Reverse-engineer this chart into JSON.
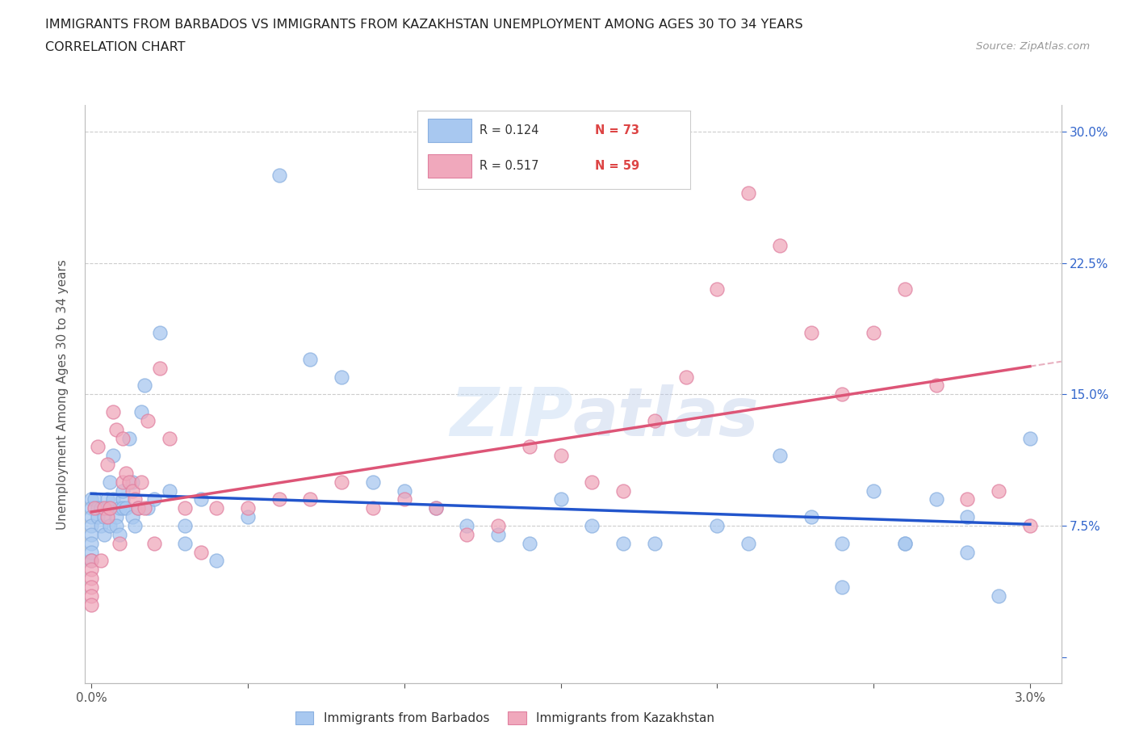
{
  "title_line1": "IMMIGRANTS FROM BARBADOS VS IMMIGRANTS FROM KAZAKHSTAN UNEMPLOYMENT AMONG AGES 30 TO 34 YEARS",
  "title_line2": "CORRELATION CHART",
  "source_text": "Source: ZipAtlas.com",
  "ylabel": "Unemployment Among Ages 30 to 34 years",
  "watermark": "ZIPatlas",
  "barbados_R": 0.124,
  "barbados_N": 73,
  "kazakhstan_R": 0.517,
  "kazakhstan_N": 59,
  "blue_color": "#a8c8f0",
  "pink_color": "#f0a8bc",
  "blue_line_color": "#2255cc",
  "pink_line_color": "#dd5577",
  "dashed_line_color": "#e8b0c0",
  "background_color": "#ffffff",
  "grid_color": "#cccccc",
  "title_color": "#222222",
  "legend_R_color": "#333333",
  "legend_N_color": "#dd4444",
  "xlim": [
    -0.0002,
    0.031
  ],
  "ylim": [
    -0.015,
    0.315
  ],
  "x_ticks": [
    0.0,
    0.005,
    0.01,
    0.015,
    0.02,
    0.025,
    0.03
  ],
  "x_tick_labels": [
    "0.0%",
    "",
    "",
    "",
    "",
    "",
    "3.0%"
  ],
  "y_ticks": [
    0.0,
    0.075,
    0.15,
    0.225,
    0.3
  ],
  "y_tick_labels_right": [
    "",
    "7.5%",
    "15.0%",
    "22.5%",
    "30.0%"
  ],
  "barbados_x": [
    0.0,
    0.0,
    0.0,
    0.0,
    0.0,
    0.0,
    0.0,
    0.0,
    0.0001,
    0.0002,
    0.0002,
    0.0003,
    0.0003,
    0.0004,
    0.0004,
    0.0005,
    0.0005,
    0.0006,
    0.0006,
    0.0007,
    0.0007,
    0.0008,
    0.0008,
    0.0009,
    0.0009,
    0.001,
    0.001,
    0.001,
    0.0011,
    0.0012,
    0.0013,
    0.0013,
    0.0014,
    0.0015,
    0.0016,
    0.0017,
    0.0018,
    0.002,
    0.0022,
    0.0025,
    0.003,
    0.003,
    0.0035,
    0.004,
    0.005,
    0.006,
    0.007,
    0.008,
    0.009,
    0.01,
    0.011,
    0.012,
    0.013,
    0.014,
    0.015,
    0.016,
    0.017,
    0.018,
    0.02,
    0.021,
    0.022,
    0.023,
    0.024,
    0.025,
    0.026,
    0.027,
    0.028,
    0.029,
    0.03,
    0.028,
    0.026,
    0.024
  ],
  "barbados_y": [
    0.09,
    0.085,
    0.08,
    0.075,
    0.07,
    0.065,
    0.06,
    0.055,
    0.09,
    0.085,
    0.08,
    0.085,
    0.075,
    0.08,
    0.07,
    0.09,
    0.085,
    0.1,
    0.075,
    0.115,
    0.09,
    0.08,
    0.075,
    0.085,
    0.07,
    0.09,
    0.095,
    0.085,
    0.085,
    0.125,
    0.1,
    0.08,
    0.075,
    0.085,
    0.14,
    0.155,
    0.085,
    0.09,
    0.185,
    0.095,
    0.075,
    0.065,
    0.09,
    0.055,
    0.08,
    0.275,
    0.17,
    0.16,
    0.1,
    0.095,
    0.085,
    0.075,
    0.07,
    0.065,
    0.09,
    0.075,
    0.065,
    0.065,
    0.075,
    0.065,
    0.115,
    0.08,
    0.065,
    0.095,
    0.065,
    0.09,
    0.06,
    0.035,
    0.125,
    0.08,
    0.065,
    0.04
  ],
  "kazakhstan_x": [
    0.0,
    0.0,
    0.0,
    0.0,
    0.0,
    0.0,
    0.0001,
    0.0002,
    0.0003,
    0.0004,
    0.0005,
    0.0005,
    0.0006,
    0.0007,
    0.0008,
    0.0009,
    0.001,
    0.001,
    0.0011,
    0.0012,
    0.0013,
    0.0014,
    0.0015,
    0.0016,
    0.0017,
    0.0018,
    0.002,
    0.0022,
    0.0025,
    0.003,
    0.0035,
    0.004,
    0.005,
    0.006,
    0.007,
    0.008,
    0.009,
    0.01,
    0.011,
    0.012,
    0.013,
    0.014,
    0.015,
    0.016,
    0.017,
    0.018,
    0.019,
    0.02,
    0.021,
    0.022,
    0.023,
    0.024,
    0.025,
    0.026,
    0.027,
    0.028,
    0.029,
    0.03
  ],
  "kazakhstan_y": [
    0.055,
    0.05,
    0.045,
    0.04,
    0.035,
    0.03,
    0.085,
    0.12,
    0.055,
    0.085,
    0.11,
    0.08,
    0.085,
    0.14,
    0.13,
    0.065,
    0.125,
    0.1,
    0.105,
    0.1,
    0.095,
    0.09,
    0.085,
    0.1,
    0.085,
    0.135,
    0.065,
    0.165,
    0.125,
    0.085,
    0.06,
    0.085,
    0.085,
    0.09,
    0.09,
    0.1,
    0.085,
    0.09,
    0.085,
    0.07,
    0.075,
    0.12,
    0.115,
    0.1,
    0.095,
    0.135,
    0.16,
    0.21,
    0.265,
    0.235,
    0.185,
    0.15,
    0.185,
    0.21,
    0.155,
    0.09,
    0.095,
    0.075
  ]
}
